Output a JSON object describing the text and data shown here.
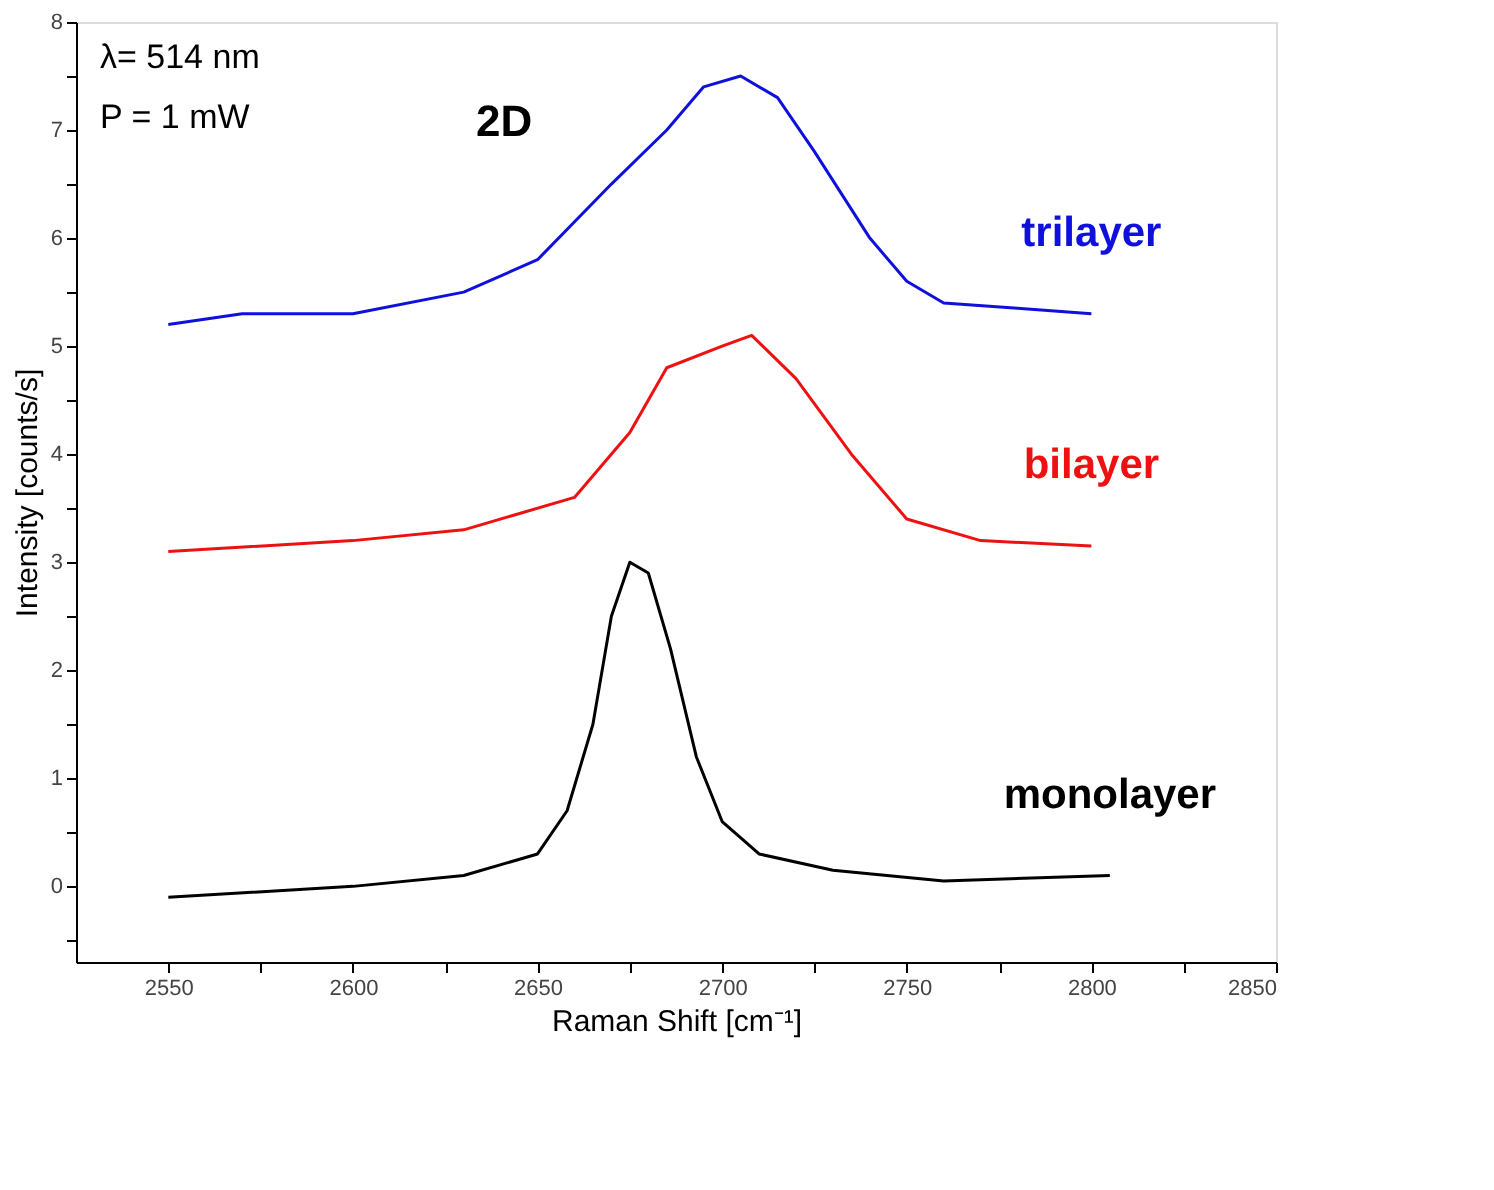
{
  "chart_data": {
    "type": "line",
    "xlabel": "Raman Shift [cm⁻¹]",
    "ylabel": "Intensity [counts/s]",
    "annotations": [
      "λ= 514 nm",
      "P = 1 mW",
      "2D"
    ],
    "xlim": [
      2525,
      2850
    ],
    "xticks": [
      2550,
      {
        "value": 2575,
        "label": null
      },
      2600,
      {
        "value": 2625,
        "label": null
      },
      2650,
      {
        "value": 2675,
        "label": null
      },
      2700,
      {
        "value": 2725,
        "label": null
      },
      2750,
      {
        "value": 2775,
        "label": null
      },
      2800,
      {
        "value": 2825,
        "label": null
      },
      2850
    ],
    "ylim": [
      -0.7,
      8
    ],
    "yticks": [
      {
        "value": -0.5,
        "label": null
      },
      0,
      {
        "value": 0.5,
        "label": null
      },
      1,
      {
        "value": 1.5,
        "label": null
      },
      2,
      {
        "value": 2.5,
        "label": null
      },
      3,
      {
        "value": 3.5,
        "label": null
      },
      4,
      {
        "value": 4.5,
        "label": null
      },
      5,
      {
        "value": 5.5,
        "label": null
      },
      6,
      {
        "value": 6.5,
        "label": null
      },
      7,
      {
        "value": 7.5,
        "label": null
      },
      8
    ],
    "grid": false,
    "marker": "none",
    "line_style": "solid",
    "series": [
      {
        "name": "trilayer",
        "color": "#1010dd",
        "x": [
          2550,
          2570,
          2600,
          2630,
          2650,
          2670,
          2685,
          2695,
          2705,
          2715,
          2725,
          2740,
          2750,
          2760,
          2780,
          2800
        ],
        "values": [
          5.2,
          5.3,
          5.3,
          5.5,
          5.8,
          6.5,
          7.0,
          7.4,
          7.5,
          7.3,
          6.8,
          6.0,
          5.6,
          5.4,
          5.35,
          5.3
        ]
      },
      {
        "name": "bilayer",
        "color": "#ee1111",
        "x": [
          2550,
          2600,
          2630,
          2660,
          2675,
          2685,
          2700,
          2708,
          2720,
          2735,
          2750,
          2770,
          2800
        ],
        "values": [
          3.1,
          3.2,
          3.3,
          3.6,
          4.2,
          4.8,
          5.0,
          5.1,
          4.7,
          4.0,
          3.4,
          3.2,
          3.15
        ]
      },
      {
        "name": "monolayer",
        "color": "#000000",
        "x": [
          2550,
          2600,
          2630,
          2650,
          2658,
          2665,
          2670,
          2675,
          2680,
          2686,
          2693,
          2700,
          2710,
          2730,
          2760,
          2805
        ],
        "values": [
          -0.1,
          0,
          0.1,
          0.3,
          0.7,
          1.5,
          2.5,
          3.0,
          2.9,
          2.2,
          1.2,
          0.6,
          0.3,
          0.15,
          0.05,
          0.1
        ]
      }
    ]
  }
}
